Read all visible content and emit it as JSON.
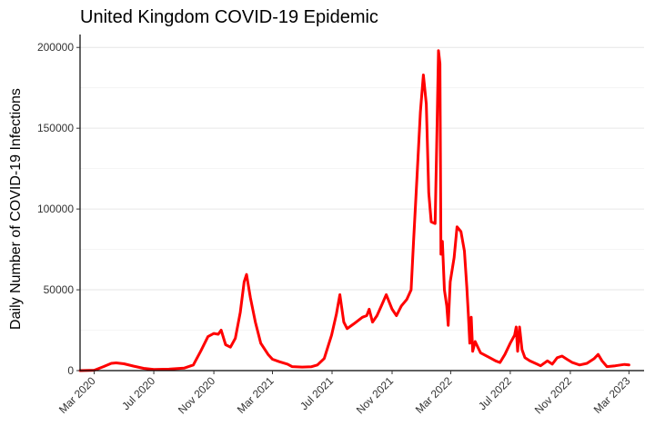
{
  "chart_data": {
    "type": "line",
    "title": "United Kingdom COVID-19 Epidemic",
    "xlabel": "",
    "ylabel": "Daily Number of COVID-19 Infections",
    "xlim": [
      "2020-02-01",
      "2023-04-01"
    ],
    "ylim": [
      0,
      208000
    ],
    "yticks": [
      0,
      50000,
      100000,
      150000,
      200000
    ],
    "xticks": [
      {
        "date": "2020-03-01",
        "label": "Mar 2020"
      },
      {
        "date": "2020-07-01",
        "label": "Jul 2020"
      },
      {
        "date": "2020-11-01",
        "label": "Nov 2020"
      },
      {
        "date": "2021-03-01",
        "label": "Mar 2021"
      },
      {
        "date": "2021-07-01",
        "label": "Jul 2021"
      },
      {
        "date": "2021-11-01",
        "label": "Nov 2021"
      },
      {
        "date": "2022-03-01",
        "label": "Mar 2022"
      },
      {
        "date": "2022-07-01",
        "label": "Jul 2022"
      },
      {
        "date": "2022-11-01",
        "label": "Nov 2022"
      },
      {
        "date": "2023-03-01",
        "label": "Mar 2023"
      }
    ],
    "grid": true,
    "color": "#ff0000",
    "series": [
      {
        "name": "",
        "points": [
          [
            "2020-02-01",
            0
          ],
          [
            "2020-03-01",
            200
          ],
          [
            "2020-03-20",
            2500
          ],
          [
            "2020-04-05",
            4500
          ],
          [
            "2020-04-15",
            4800
          ],
          [
            "2020-05-01",
            4200
          ],
          [
            "2020-05-20",
            2800
          ],
          [
            "2020-06-10",
            1400
          ],
          [
            "2020-07-01",
            700
          ],
          [
            "2020-08-01",
            900
          ],
          [
            "2020-09-01",
            1500
          ],
          [
            "2020-09-20",
            3500
          ],
          [
            "2020-10-05",
            12000
          ],
          [
            "2020-10-20",
            21000
          ],
          [
            "2020-11-01",
            23000
          ],
          [
            "2020-11-10",
            22500
          ],
          [
            "2020-11-16",
            25000
          ],
          [
            "2020-11-25",
            16000
          ],
          [
            "2020-12-05",
            14500
          ],
          [
            "2020-12-15",
            20000
          ],
          [
            "2020-12-25",
            36000
          ],
          [
            "2021-01-02",
            55000
          ],
          [
            "2021-01-07",
            59500
          ],
          [
            "2021-01-15",
            45000
          ],
          [
            "2021-01-25",
            30000
          ],
          [
            "2021-02-05",
            17000
          ],
          [
            "2021-02-20",
            10000
          ],
          [
            "2021-03-01",
            7000
          ],
          [
            "2021-03-15",
            5500
          ],
          [
            "2021-04-01",
            4000
          ],
          [
            "2021-04-10",
            2500
          ],
          [
            "2021-05-01",
            2200
          ],
          [
            "2021-05-20",
            2400
          ],
          [
            "2021-06-01",
            3500
          ],
          [
            "2021-06-15",
            7500
          ],
          [
            "2021-06-30",
            22000
          ],
          [
            "2021-07-10",
            35000
          ],
          [
            "2021-07-17",
            47000
          ],
          [
            "2021-07-25",
            30000
          ],
          [
            "2021-08-01",
            26000
          ],
          [
            "2021-08-15",
            29000
          ],
          [
            "2021-09-01",
            33000
          ],
          [
            "2021-09-10",
            34000
          ],
          [
            "2021-09-15",
            38000
          ],
          [
            "2021-09-22",
            30000
          ],
          [
            "2021-10-01",
            34000
          ],
          [
            "2021-10-10",
            40000
          ],
          [
            "2021-10-20",
            47000
          ],
          [
            "2021-11-01",
            38000
          ],
          [
            "2021-11-10",
            34000
          ],
          [
            "2021-11-20",
            40000
          ],
          [
            "2021-12-01",
            44000
          ],
          [
            "2021-12-10",
            50000
          ],
          [
            "2021-12-15",
            80000
          ],
          [
            "2021-12-22",
            120000
          ],
          [
            "2021-12-29",
            160000
          ],
          [
            "2022-01-04",
            183000
          ],
          [
            "2022-01-10",
            165000
          ],
          [
            "2022-01-15",
            110000
          ],
          [
            "2022-01-20",
            92000
          ],
          [
            "2022-01-28",
            91000
          ],
          [
            "2022-02-01",
            150000
          ],
          [
            "2022-02-04",
            198000
          ],
          [
            "2022-02-07",
            190000
          ],
          [
            "2022-02-09",
            72000
          ],
          [
            "2022-02-12",
            80000
          ],
          [
            "2022-02-16",
            50000
          ],
          [
            "2022-02-21",
            40000
          ],
          [
            "2022-02-24",
            28000
          ],
          [
            "2022-02-28",
            55000
          ],
          [
            "2022-03-08",
            70000
          ],
          [
            "2022-03-14",
            89000
          ],
          [
            "2022-03-22",
            86000
          ],
          [
            "2022-03-29",
            74000
          ],
          [
            "2022-04-03",
            52000
          ],
          [
            "2022-04-06",
            35000
          ],
          [
            "2022-04-09",
            17000
          ],
          [
            "2022-04-12",
            33000
          ],
          [
            "2022-04-15",
            12000
          ],
          [
            "2022-04-20",
            18000
          ],
          [
            "2022-05-01",
            11000
          ],
          [
            "2022-05-20",
            8000
          ],
          [
            "2022-06-01",
            6000
          ],
          [
            "2022-06-10",
            5000
          ],
          [
            "2022-06-20",
            10000
          ],
          [
            "2022-07-01",
            17000
          ],
          [
            "2022-07-10",
            22000
          ],
          [
            "2022-07-13",
            27000
          ],
          [
            "2022-07-16",
            12000
          ],
          [
            "2022-07-20",
            27000
          ],
          [
            "2022-07-25",
            13000
          ],
          [
            "2022-07-31",
            8000
          ],
          [
            "2022-08-10",
            6000
          ],
          [
            "2022-08-25",
            4000
          ],
          [
            "2022-09-01",
            3000
          ],
          [
            "2022-09-15",
            6000
          ],
          [
            "2022-09-25",
            4000
          ],
          [
            "2022-10-05",
            8000
          ],
          [
            "2022-10-15",
            9000
          ],
          [
            "2022-10-25",
            7000
          ],
          [
            "2022-11-05",
            5000
          ],
          [
            "2022-11-20",
            3500
          ],
          [
            "2022-12-05",
            4500
          ],
          [
            "2022-12-20",
            7500
          ],
          [
            "2022-12-28",
            10000
          ],
          [
            "2023-01-05",
            6000
          ],
          [
            "2023-01-15",
            2500
          ],
          [
            "2023-02-01",
            3000
          ],
          [
            "2023-02-20",
            3800
          ],
          [
            "2023-03-01",
            3500
          ]
        ]
      }
    ]
  }
}
